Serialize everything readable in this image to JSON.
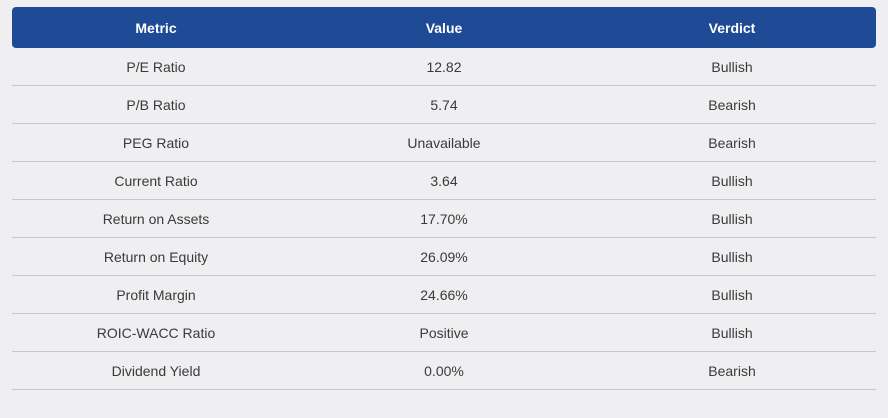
{
  "table": {
    "headers": [
      "Metric",
      "Value",
      "Verdict"
    ],
    "rows": [
      {
        "metric": "P/E Ratio",
        "value": "12.82",
        "verdict": "Bullish"
      },
      {
        "metric": "P/B Ratio",
        "value": "5.74",
        "verdict": "Bearish"
      },
      {
        "metric": "PEG Ratio",
        "value": "Unavailable",
        "verdict": "Bearish"
      },
      {
        "metric": "Current Ratio",
        "value": "3.64",
        "verdict": "Bullish"
      },
      {
        "metric": "Return on Assets",
        "value": "17.70%",
        "verdict": "Bullish"
      },
      {
        "metric": "Return on Equity",
        "value": "26.09%",
        "verdict": "Bullish"
      },
      {
        "metric": "Profit Margin",
        "value": "24.66%",
        "verdict": "Bullish"
      },
      {
        "metric": "ROIC-WACC Ratio",
        "value": "Positive",
        "verdict": "Bullish"
      },
      {
        "metric": "Dividend Yield",
        "value": "0.00%",
        "verdict": "Bearish"
      }
    ]
  },
  "colors": {
    "header_bg": "#1f4a96",
    "page_bg": "#efeff1",
    "row_divider": "#c3c7d1"
  }
}
